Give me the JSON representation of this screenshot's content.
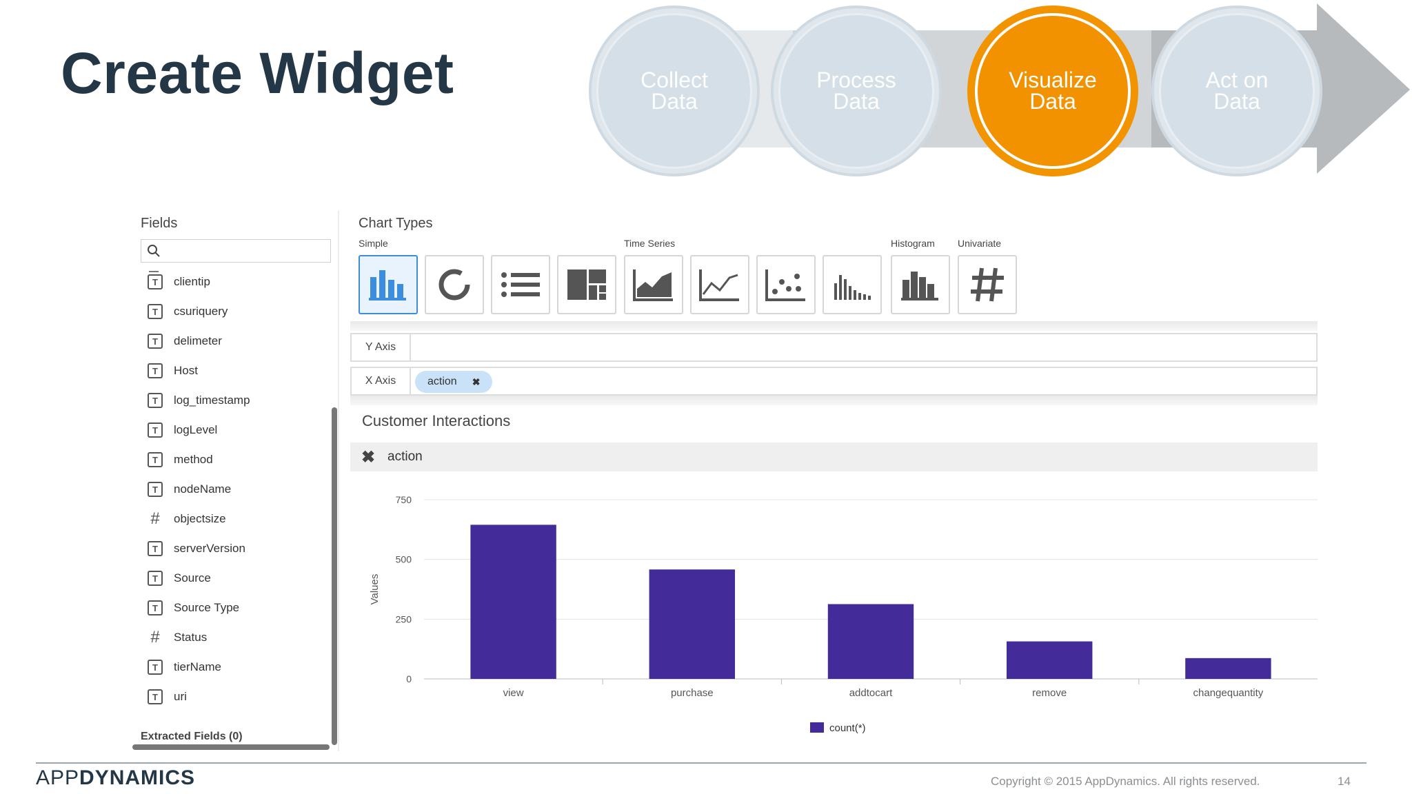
{
  "slide": {
    "title": "Create Widget",
    "page_number": "14"
  },
  "process_steps": [
    {
      "label": "Collect\nData",
      "active": false
    },
    {
      "label": "Process\nData",
      "active": false
    },
    {
      "label": "Visualize\nData",
      "active": true
    },
    {
      "label": "Act on\nData",
      "active": false
    }
  ],
  "fields_panel": {
    "title": "Fields",
    "search": {
      "value": "",
      "placeholder": ""
    },
    "items": [
      {
        "label": "clientip",
        "type": "text"
      },
      {
        "label": "csuriquery",
        "type": "text"
      },
      {
        "label": "delimeter",
        "type": "text"
      },
      {
        "label": "Host",
        "type": "text"
      },
      {
        "label": "log_timestamp",
        "type": "text"
      },
      {
        "label": "logLevel",
        "type": "text"
      },
      {
        "label": "method",
        "type": "text"
      },
      {
        "label": "nodeName",
        "type": "text"
      },
      {
        "label": "objectsize",
        "type": "number"
      },
      {
        "label": "serverVersion",
        "type": "text"
      },
      {
        "label": "Source",
        "type": "text"
      },
      {
        "label": "Source Type",
        "type": "text"
      },
      {
        "label": "Status",
        "type": "number"
      },
      {
        "label": "tierName",
        "type": "text"
      },
      {
        "label": "uri",
        "type": "text"
      }
    ],
    "extracted_label": "Extracted Fields (0)",
    "type_icons": {
      "text": "T",
      "number": "#"
    }
  },
  "builder": {
    "chart_types_title": "Chart Types",
    "groups": {
      "simple": "Simple",
      "time_series": "Time Series",
      "histogram": "Histogram",
      "univariate": "Univariate"
    },
    "chart_type_buttons": [
      {
        "name": "column-chart-icon",
        "selected": true
      },
      {
        "name": "donut-chart-icon",
        "selected": false
      },
      {
        "name": "list-chart-icon",
        "selected": false
      },
      {
        "name": "treemap-chart-icon",
        "selected": false
      },
      {
        "name": "area-chart-icon",
        "selected": false
      },
      {
        "name": "line-chart-icon",
        "selected": false
      },
      {
        "name": "scatter-chart-icon",
        "selected": false
      },
      {
        "name": "bar-timeseries-icon",
        "selected": false
      },
      {
        "name": "histogram-icon",
        "selected": false
      },
      {
        "name": "univariate-hash-icon",
        "selected": false
      }
    ],
    "y_axis_label": "Y Axis",
    "x_axis_label": "X Axis",
    "x_axis_value": "action",
    "pill_remove": "✖",
    "widget_title": "Customer Interactions",
    "filter": {
      "remove_icon": "✖",
      "label": "action"
    }
  },
  "colors": {
    "accent": "#f39200",
    "bar": "#432c9a",
    "selected": "#3c8dde"
  },
  "chart_data": {
    "type": "bar",
    "categories": [
      "view",
      "purchase",
      "addtocart",
      "remove",
      "changequantity"
    ],
    "series": [
      {
        "name": "count(*)",
        "values": [
          645,
          458,
          313,
          157,
          87
        ]
      }
    ],
    "ylabel": "Values",
    "xlabel": "",
    "ylim": [
      0,
      750
    ],
    "yticks": [
      "0",
      "250",
      "500",
      "750"
    ],
    "legend": "bottom-center",
    "grid": true
  },
  "footer": {
    "brand_prefix": "APP",
    "brand_suffix": "DYNAMICS",
    "copyright": "Copyright © 2015 AppDynamics. All rights reserved."
  }
}
